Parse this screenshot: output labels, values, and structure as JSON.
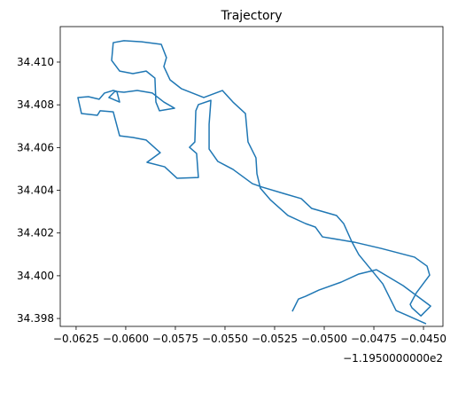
{
  "chart_data": {
    "type": "line",
    "title": "Trajectory",
    "x_offset_label": "−1.1950000000e2",
    "x": [
      -0.05161,
      -0.0513,
      -0.05094,
      -0.05027,
      -0.04915,
      -0.04826,
      -0.04737,
      -0.04603,
      -0.04464,
      -0.04513,
      -0.04558,
      -0.04567,
      -0.04536,
      -0.04469,
      -0.04482,
      -0.04545,
      -0.04714,
      -0.04848,
      -0.05009,
      -0.05045,
      -0.05094,
      -0.05183,
      -0.05272,
      -0.05322,
      -0.05339,
      -0.05344,
      -0.05384,
      -0.05397,
      -0.0546,
      -0.05513,
      -0.05607,
      -0.05719,
      -0.05777,
      -0.05808,
      -0.05795,
      -0.05821,
      -0.0592,
      -0.06009,
      -0.06063,
      -0.06071,
      -0.06031,
      -0.05964,
      -0.05897,
      -0.05853,
      -0.05848,
      -0.0583,
      -0.05754,
      -0.05808,
      -0.05866,
      -0.05942,
      -0.06009,
      -0.06054,
      -0.06085,
      -0.06031,
      -0.06045,
      -0.06063,
      -0.06107,
      -0.06134,
      -0.06188,
      -0.06241,
      -0.06223,
      -0.06143,
      -0.06129,
      -0.06063,
      -0.06031,
      -0.05964,
      -0.05897,
      -0.05826,
      -0.05893,
      -0.05804,
      -0.05741,
      -0.05634,
      -0.05643,
      -0.05679,
      -0.05652,
      -0.05647,
      -0.05634,
      -0.05571,
      -0.0558,
      -0.0558,
      -0.05536,
      -0.0546,
      -0.05362,
      -0.05313,
      -0.05205,
      -0.05116,
      -0.05063,
      -0.04938,
      -0.04902,
      -0.04862,
      -0.04826,
      -0.04705,
      -0.04638,
      -0.04589,
      -0.04487
    ],
    "series": [
      {
        "color": "#1f77b4",
        "values": [
          34.39833,
          34.39891,
          34.39904,
          34.39933,
          34.3997,
          34.40008,
          34.40028,
          34.39954,
          34.39858,
          34.39812,
          34.3985,
          34.39866,
          34.3992,
          34.40003,
          34.40045,
          34.40087,
          34.40128,
          34.40157,
          34.40182,
          34.40228,
          34.40244,
          34.40282,
          34.40356,
          34.4041,
          34.40477,
          34.40552,
          34.40626,
          34.40759,
          34.40813,
          34.40867,
          34.40834,
          34.40875,
          34.40917,
          34.40979,
          34.41021,
          34.41083,
          34.41095,
          34.411,
          34.41091,
          34.41008,
          34.40958,
          34.40946,
          34.40958,
          34.40925,
          34.40813,
          34.40772,
          34.40784,
          34.40813,
          34.40855,
          34.40867,
          34.40859,
          34.40863,
          34.40834,
          34.40813,
          34.40863,
          34.40867,
          34.40855,
          34.40826,
          34.40838,
          34.40834,
          34.40759,
          34.40751,
          34.40772,
          34.40767,
          34.40655,
          34.40647,
          34.40635,
          34.40576,
          34.40531,
          34.4051,
          34.40456,
          34.4046,
          34.40572,
          34.40601,
          34.40626,
          34.40772,
          34.40801,
          34.40821,
          34.40709,
          34.40593,
          34.40535,
          34.40498,
          34.40431,
          34.40415,
          34.40385,
          34.40361,
          34.40315,
          34.40282,
          34.40244,
          34.40161,
          34.40099,
          34.39962,
          34.39837,
          34.39817,
          34.39775
        ]
      }
    ],
    "xlim": [
      -0.0633,
      -0.04402
    ],
    "xticks": [
      {
        "value": -0.0625,
        "label": "−0.0625"
      },
      {
        "value": -0.06,
        "label": "−0.0600"
      },
      {
        "value": -0.0575,
        "label": "−0.0575"
      },
      {
        "value": -0.055,
        "label": "−0.0550"
      },
      {
        "value": -0.0525,
        "label": "−0.0525"
      },
      {
        "value": -0.05,
        "label": "−0.0500"
      },
      {
        "value": -0.0475,
        "label": "−0.0475"
      },
      {
        "value": -0.045,
        "label": "−0.0450"
      }
    ],
    "ylim": [
      34.39763,
      34.41166
    ],
    "yticks": [
      34.398,
      {
        "value": 34.4,
        "label": "34.400"
      },
      34.402,
      34.404,
      34.406,
      34.408,
      {
        "value": 34.41,
        "label": "34.410"
      }
    ],
    "grid": false
  }
}
